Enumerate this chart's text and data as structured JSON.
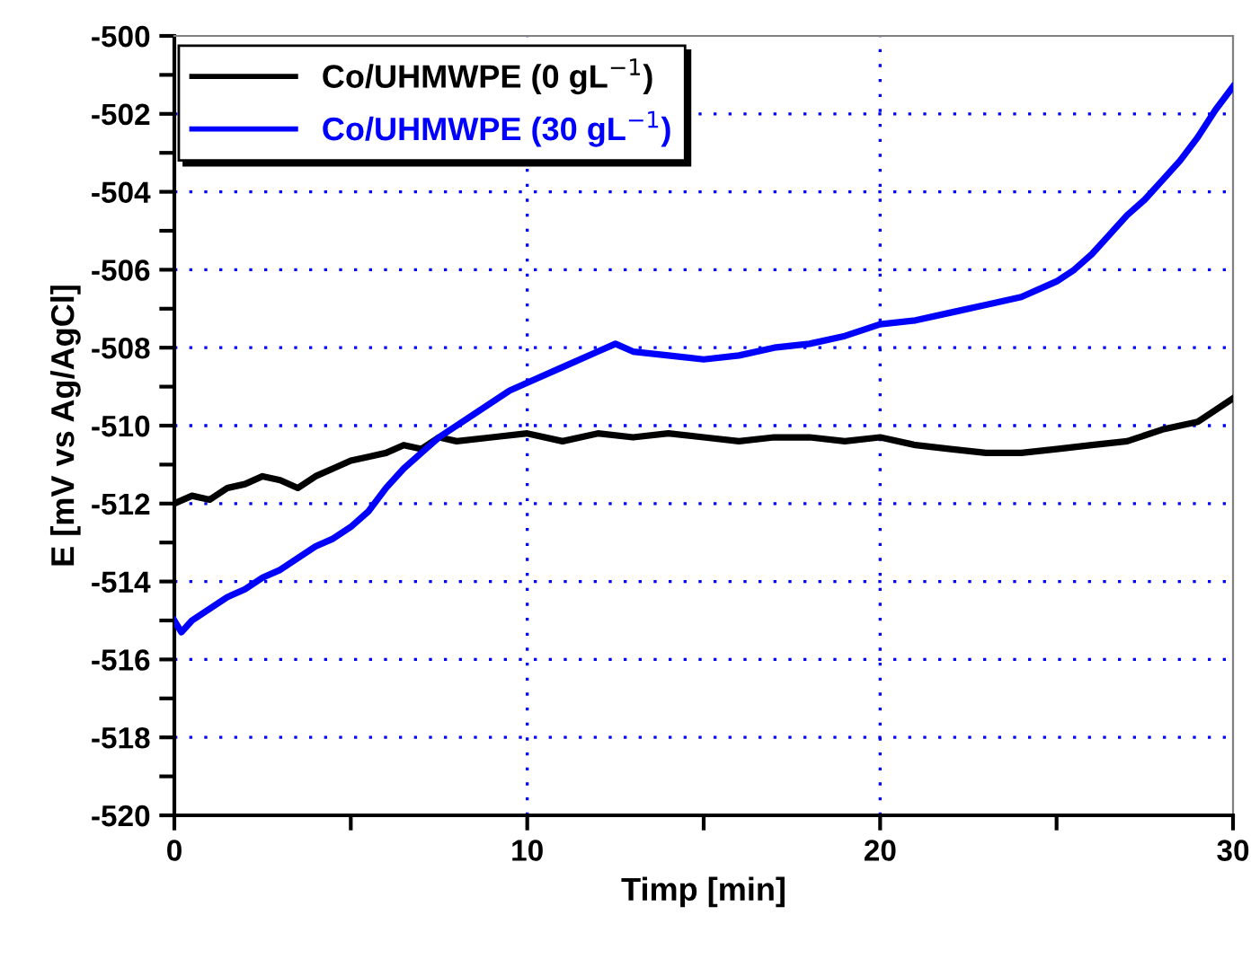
{
  "chart_data": {
    "type": "line",
    "xlabel": "Timp [min]",
    "ylabel": "E [mV vs Ag/AgCl]",
    "xlim": [
      0,
      30
    ],
    "ylim": [
      -520,
      -500
    ],
    "xticks": [
      0,
      {
        "value": 5,
        "label": null
      },
      10,
      {
        "value": 15,
        "label": null
      },
      20,
      {
        "value": 25,
        "label": null
      },
      30
    ],
    "yticks": [
      -520,
      {
        "value": -519,
        "label": null
      },
      -518,
      {
        "value": -517,
        "label": null
      },
      -516,
      {
        "value": -515,
        "label": null
      },
      -514,
      {
        "value": -513,
        "label": null
      },
      -512,
      {
        "value": -511,
        "label": null
      },
      -510,
      {
        "value": -509,
        "label": null
      },
      -508,
      {
        "value": -507,
        "label": null
      },
      -506,
      {
        "value": -505,
        "label": null
      },
      -504,
      {
        "value": -503,
        "label": null
      },
      -502,
      {
        "value": -501,
        "label": null
      },
      -500
    ],
    "grid": true,
    "legend": "top left",
    "line_style": "solid",
    "marker": "none",
    "series": [
      {
        "name": "Co/UHMWPE (0 gL$^{−1}$)",
        "color": "#000000",
        "x": [
          0,
          0.5,
          1,
          1.5,
          2,
          2.5,
          3,
          3.5,
          4,
          4.5,
          5,
          5.5,
          6,
          6.5,
          7,
          7.5,
          8,
          9,
          10,
          11,
          12,
          13,
          14,
          15,
          16,
          17,
          18,
          19,
          20,
          21,
          22,
          23,
          24,
          25,
          26,
          27,
          28,
          29,
          29.5,
          30
        ],
        "values": [
          -512.0,
          -511.8,
          -511.9,
          -511.6,
          -511.5,
          -511.3,
          -511.4,
          -511.6,
          -511.3,
          -511.1,
          -510.9,
          -510.8,
          -510.7,
          -510.5,
          -510.6,
          -510.3,
          -510.4,
          -510.3,
          -510.2,
          -510.4,
          -510.2,
          -510.3,
          -510.2,
          -510.3,
          -510.4,
          -510.3,
          -510.3,
          -510.4,
          -510.3,
          -510.5,
          -510.6,
          -510.7,
          -510.7,
          -510.6,
          -510.5,
          -510.4,
          -510.1,
          -509.9,
          -509.6,
          -509.3
        ]
      },
      {
        "name": "Co/UHMWPE (30 gL$^{−1}$)",
        "color": "#0000ff",
        "x": [
          0,
          0.2,
          0.5,
          1,
          1.5,
          2,
          2.5,
          3,
          3.5,
          4,
          4.5,
          5,
          5.5,
          6,
          6.5,
          7,
          7.5,
          8,
          8.5,
          9,
          9.5,
          10,
          11,
          12,
          12.5,
          13,
          14,
          15,
          16,
          17,
          18,
          19,
          20,
          21,
          22,
          23,
          24,
          25,
          25.5,
          26,
          26.5,
          27,
          27.5,
          28,
          28.5,
          29,
          29.5,
          30
        ],
        "values": [
          -515.0,
          -515.3,
          -515.0,
          -514.7,
          -514.4,
          -514.2,
          -513.9,
          -513.7,
          -513.4,
          -513.1,
          -512.9,
          -512.6,
          -512.2,
          -511.6,
          -511.1,
          -510.7,
          -510.3,
          -510.0,
          -509.7,
          -509.4,
          -509.1,
          -508.9,
          -508.5,
          -508.1,
          -507.9,
          -508.1,
          -508.2,
          -508.3,
          -508.2,
          -508.0,
          -507.9,
          -507.7,
          -507.4,
          -507.3,
          -507.1,
          -506.9,
          -506.7,
          -506.3,
          -506.0,
          -505.6,
          -505.1,
          -504.6,
          -504.2,
          -503.7,
          -503.2,
          -502.6,
          -501.9,
          -501.3
        ]
      }
    ]
  }
}
